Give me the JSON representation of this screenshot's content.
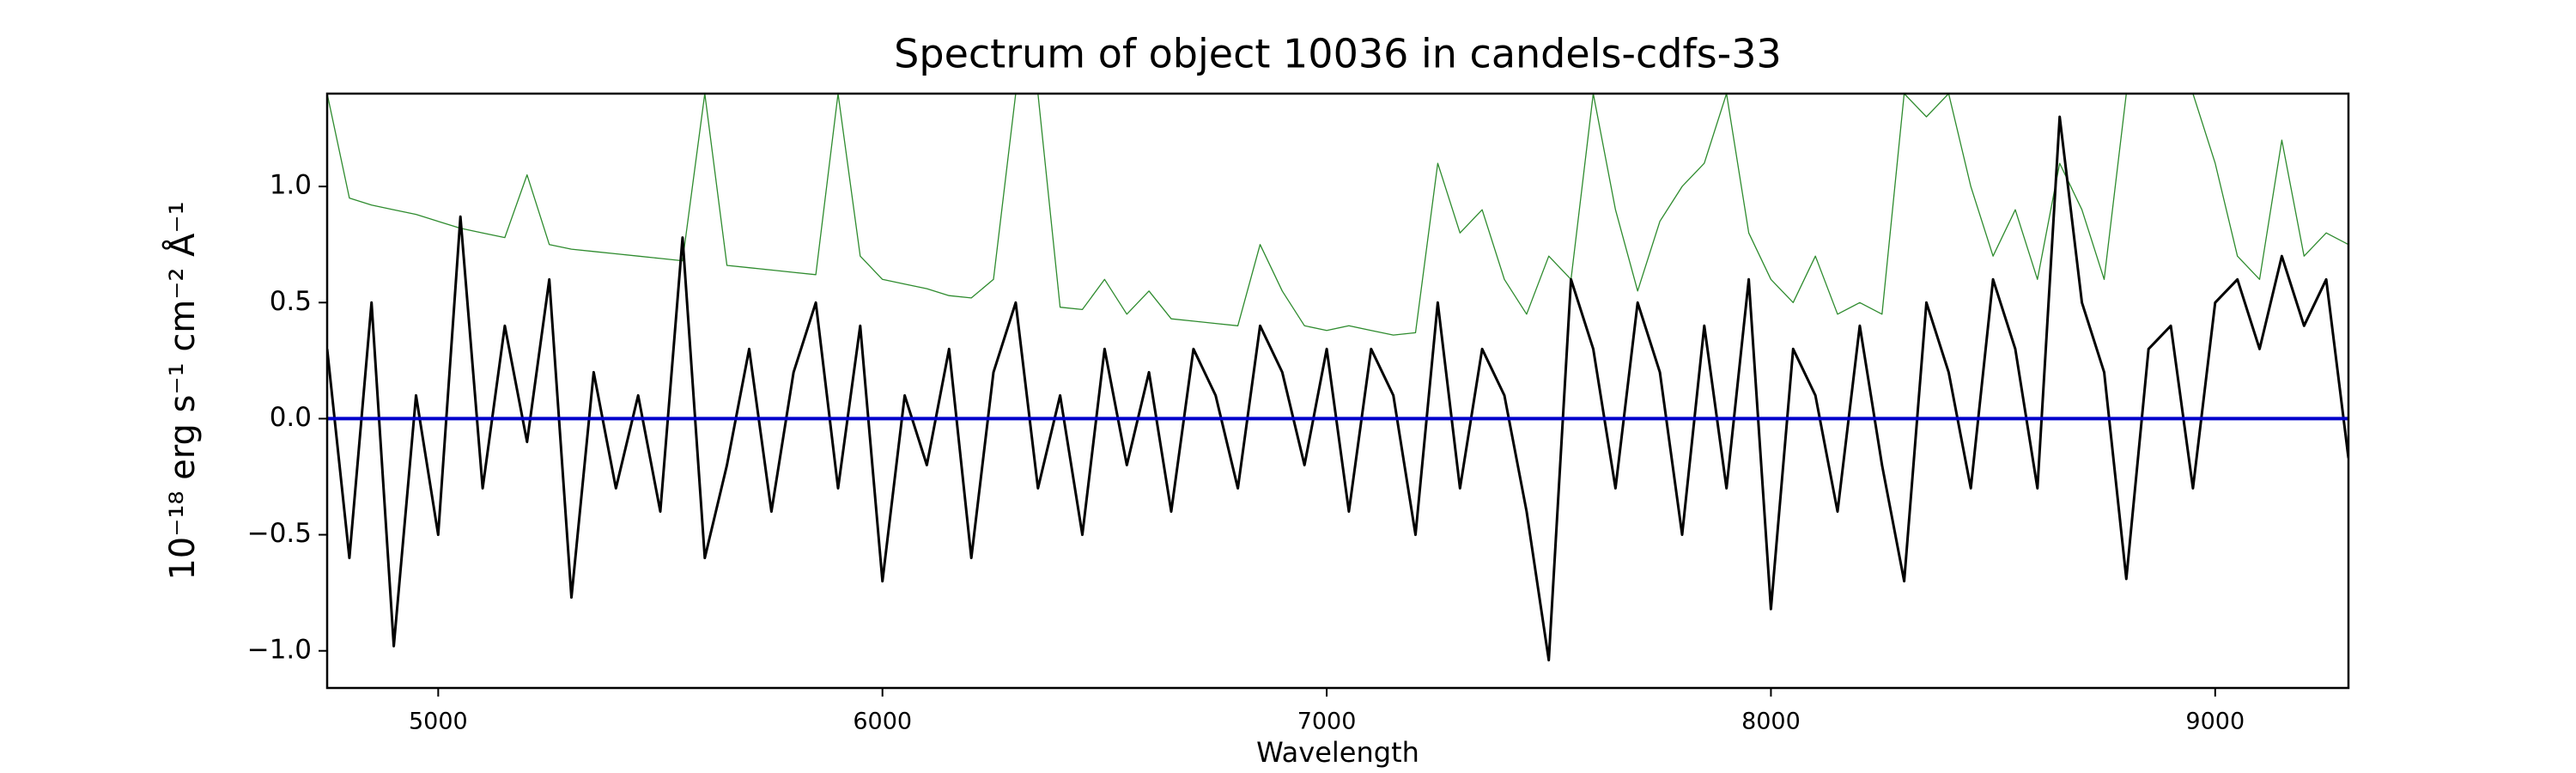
{
  "chart_data": {
    "type": "line",
    "title": "Spectrum of object 10036 in candels-cdfs-33",
    "xlabel": "Wavelength",
    "ylabel": "10⁻¹⁸ erg s⁻¹ cm⁻² Å⁻¹",
    "x": [
      4750,
      4800,
      4850,
      4900,
      4950,
      5000,
      5050,
      5100,
      5150,
      5200,
      5250,
      5300,
      5350,
      5400,
      5450,
      5500,
      5550,
      5600,
      5650,
      5700,
      5750,
      5800,
      5850,
      5900,
      5950,
      6000,
      6050,
      6100,
      6150,
      6200,
      6250,
      6300,
      6350,
      6400,
      6450,
      6500,
      6550,
      6600,
      6650,
      6700,
      6750,
      6800,
      6850,
      6900,
      6950,
      7000,
      7050,
      7100,
      7150,
      7200,
      7250,
      7300,
      7350,
      7400,
      7450,
      7500,
      7550,
      7600,
      7650,
      7700,
      7750,
      7800,
      7850,
      7900,
      7950,
      8000,
      8050,
      8100,
      8150,
      8200,
      8250,
      8300,
      8350,
      8400,
      8450,
      8500,
      8550,
      8600,
      8650,
      8700,
      8750,
      8800,
      8850,
      8900,
      8950,
      9000,
      9050,
      9100,
      9150,
      9200,
      9250,
      9300
    ],
    "series": [
      {
        "color": "#2e8b2e",
        "values": [
          1.4,
          0.95,
          0.92,
          0.9,
          0.88,
          0.85,
          0.82,
          0.8,
          0.78,
          1.05,
          0.75,
          0.73,
          0.72,
          0.71,
          0.7,
          0.69,
          0.68,
          1.4,
          0.66,
          0.65,
          0.64,
          0.63,
          0.62,
          1.4,
          0.7,
          0.6,
          0.58,
          0.56,
          0.53,
          0.52,
          0.6,
          1.4,
          1.4,
          0.48,
          0.47,
          0.6,
          0.45,
          0.55,
          0.43,
          0.42,
          0.41,
          0.4,
          0.75,
          0.55,
          0.4,
          0.38,
          0.4,
          0.38,
          0.36,
          0.37,
          1.1,
          0.8,
          0.9,
          0.6,
          0.45,
          0.7,
          0.6,
          1.4,
          0.9,
          0.55,
          0.85,
          1.0,
          1.1,
          1.4,
          0.8,
          0.6,
          0.5,
          0.7,
          0.45,
          0.5,
          0.45,
          1.4,
          1.3,
          1.4,
          1.0,
          0.7,
          0.9,
          0.6,
          1.1,
          0.9,
          0.6,
          1.4,
          1.4,
          1.4,
          1.4,
          1.1,
          0.7,
          0.6,
          1.2,
          0.7,
          0.8,
          0.75
        ]
      },
      {
        "color": "#000000",
        "values": [
          0.3,
          -0.6,
          0.5,
          -0.98,
          0.1,
          -0.5,
          0.87,
          -0.3,
          0.4,
          -0.1,
          0.6,
          -0.77,
          0.2,
          -0.3,
          0.1,
          -0.4,
          0.78,
          -0.6,
          -0.2,
          0.3,
          -0.4,
          0.2,
          0.5,
          -0.3,
          0.4,
          -0.7,
          0.1,
          -0.2,
          0.3,
          -0.6,
          0.2,
          0.5,
          -0.3,
          0.1,
          -0.5,
          0.3,
          -0.2,
          0.2,
          -0.4,
          0.3,
          0.1,
          -0.3,
          0.4,
          0.2,
          -0.2,
          0.3,
          -0.4,
          0.3,
          0.1,
          -0.5,
          0.5,
          -0.3,
          0.3,
          0.1,
          -0.4,
          -1.04,
          0.6,
          0.3,
          -0.3,
          0.5,
          0.2,
          -0.5,
          0.4,
          -0.3,
          0.6,
          -0.82,
          0.3,
          0.1,
          -0.4,
          0.4,
          -0.2,
          -0.7,
          0.5,
          0.2,
          -0.3,
          0.6,
          0.3,
          -0.3,
          1.3,
          0.5,
          0.2,
          -0.69,
          0.3,
          0.4,
          -0.3,
          0.5,
          0.6,
          0.3,
          0.7,
          0.4,
          0.6,
          -0.17
        ]
      },
      {
        "color": "#0000cc",
        "values": [
          0,
          0,
          0,
          0,
          0,
          0,
          0,
          0,
          0,
          0,
          0,
          0,
          0,
          0,
          0,
          0,
          0,
          0,
          0,
          0,
          0,
          0,
          0,
          0,
          0,
          0,
          0,
          0,
          0,
          0,
          0,
          0,
          0,
          0,
          0,
          0,
          0,
          0,
          0,
          0,
          0,
          0,
          0,
          0,
          0,
          0,
          0,
          0,
          0,
          0,
          0,
          0,
          0,
          0,
          0,
          0,
          0,
          0,
          0,
          0,
          0,
          0,
          0,
          0,
          0,
          0,
          0,
          0,
          0,
          0,
          0,
          0,
          0,
          0,
          0,
          0,
          0,
          0,
          0,
          0,
          0,
          0,
          0,
          0,
          0,
          0,
          0,
          0,
          0,
          0,
          0,
          0
        ]
      }
    ],
    "xlim": [
      4750,
      9300
    ],
    "xticks": [
      5000,
      6000,
      7000,
      8000,
      9000
    ],
    "ylim": [
      -1.16,
      1.4
    ],
    "yticks": [
      {
        "value": -1,
        "label": "−1.0"
      },
      {
        "value": -0.5,
        "label": "−0.5"
      },
      {
        "value": 0,
        "label": "0.0"
      },
      {
        "value": 0.5,
        "label": "0.5"
      },
      {
        "value": 1,
        "label": "1.0"
      }
    ],
    "grid": false
  }
}
